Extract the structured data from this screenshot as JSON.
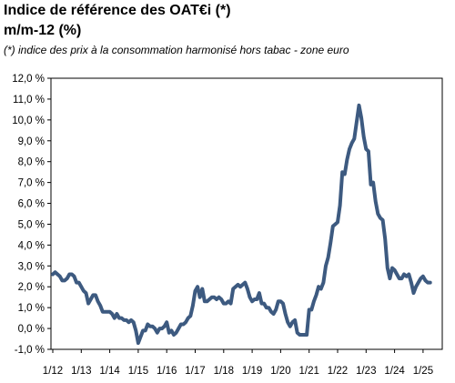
{
  "chart_data": {
    "type": "line",
    "title": "Indice de référence des OAT€i (*)",
    "title_line2": "m/m-12 (%)",
    "subtitle": "(*) indice des prix à la consommation harmonisé hors tabac - zone euro",
    "xlabel": "",
    "ylabel": "",
    "ylim": [
      -1.0,
      12.0
    ],
    "grid": false,
    "line_color": "#3d5a80",
    "y_ticks": [
      "12,0 %",
      "11,0 %",
      "10,0 %",
      "9,0 %",
      "8,0 %",
      "7,0 %",
      "6,0 %",
      "5,0 %",
      "4,0 %",
      "3,0 %",
      "2,0 %",
      "1,0 %",
      "0,0 %",
      "-1,0 %"
    ],
    "x_ticks": [
      "1/12",
      "1/13",
      "1/14",
      "1/15",
      "1/16",
      "1/17",
      "1/18",
      "1/19",
      "1/20",
      "1/21",
      "1/22",
      "1/23",
      "1/24",
      "1/25"
    ],
    "series": [
      {
        "x": [
          "2012-01",
          "2012-02",
          "2012-03",
          "2012-04",
          "2012-05",
          "2012-06",
          "2012-07",
          "2012-08",
          "2012-09",
          "2012-10",
          "2012-11",
          "2012-12",
          "2013-01",
          "2013-02",
          "2013-03",
          "2013-04",
          "2013-05",
          "2013-06",
          "2013-07",
          "2013-08",
          "2013-09",
          "2013-10",
          "2013-11",
          "2013-12",
          "2014-01",
          "2014-02",
          "2014-03",
          "2014-04",
          "2014-05",
          "2014-06",
          "2014-07",
          "2014-08",
          "2014-09",
          "2014-10",
          "2014-11",
          "2014-12",
          "2015-01",
          "2015-02",
          "2015-03",
          "2015-04",
          "2015-05",
          "2015-06",
          "2015-07",
          "2015-08",
          "2015-09",
          "2015-10",
          "2015-11",
          "2015-12",
          "2016-01",
          "2016-02",
          "2016-03",
          "2016-04",
          "2016-05",
          "2016-06",
          "2016-07",
          "2016-08",
          "2016-09",
          "2016-10",
          "2016-11",
          "2016-12",
          "2017-01",
          "2017-02",
          "2017-03",
          "2017-04",
          "2017-05",
          "2017-06",
          "2017-07",
          "2017-08",
          "2017-09",
          "2017-10",
          "2017-11",
          "2017-12",
          "2018-01",
          "2018-02",
          "2018-03",
          "2018-04",
          "2018-05",
          "2018-06",
          "2018-07",
          "2018-08",
          "2018-09",
          "2018-10",
          "2018-11",
          "2018-12",
          "2019-01",
          "2019-02",
          "2019-03",
          "2019-04",
          "2019-05",
          "2019-06",
          "2019-07",
          "2019-08",
          "2019-09",
          "2019-10",
          "2019-11",
          "2019-12",
          "2020-01",
          "2020-02",
          "2020-03",
          "2020-04",
          "2020-05",
          "2020-06",
          "2020-07",
          "2020-08",
          "2020-09",
          "2020-10",
          "2020-11",
          "2020-12",
          "2021-01",
          "2021-02",
          "2021-03",
          "2021-04",
          "2021-05",
          "2021-06",
          "2021-07",
          "2021-08",
          "2021-09",
          "2021-10",
          "2021-11",
          "2021-12",
          "2022-01",
          "2022-02",
          "2022-03",
          "2022-04",
          "2022-05",
          "2022-06",
          "2022-07",
          "2022-08",
          "2022-09",
          "2022-10",
          "2022-11",
          "2022-12",
          "2023-01",
          "2023-02",
          "2023-03",
          "2023-04",
          "2023-05",
          "2023-06",
          "2023-07",
          "2023-08",
          "2023-09",
          "2023-10",
          "2023-11",
          "2023-12",
          "2024-01",
          "2024-02",
          "2024-03",
          "2024-04",
          "2024-05",
          "2024-06",
          "2024-07",
          "2024-08",
          "2024-09",
          "2024-10",
          "2024-11",
          "2024-12",
          "2025-01",
          "2025-02",
          "2025-03",
          "2025-04"
        ],
        "values": [
          2.6,
          2.7,
          2.6,
          2.5,
          2.3,
          2.3,
          2.4,
          2.6,
          2.6,
          2.5,
          2.2,
          2.2,
          2.0,
          1.8,
          1.7,
          1.2,
          1.4,
          1.6,
          1.6,
          1.3,
          1.1,
          0.8,
          0.8,
          0.8,
          0.8,
          0.7,
          0.5,
          0.7,
          0.5,
          0.5,
          0.4,
          0.4,
          0.3,
          0.4,
          0.3,
          -0.1,
          -0.7,
          -0.4,
          -0.1,
          -0.1,
          0.2,
          0.1,
          0.1,
          0.0,
          -0.2,
          0.0,
          0.0,
          0.1,
          0.3,
          -0.2,
          -0.1,
          -0.3,
          -0.2,
          0.0,
          0.2,
          0.2,
          0.3,
          0.5,
          0.6,
          1.1,
          1.8,
          2.0,
          1.5,
          1.9,
          1.3,
          1.3,
          1.4,
          1.5,
          1.5,
          1.4,
          1.5,
          1.4,
          1.2,
          1.2,
          1.3,
          1.2,
          1.9,
          2.0,
          2.1,
          2.0,
          2.1,
          2.2,
          1.9,
          1.5,
          1.3,
          1.4,
          1.4,
          1.7,
          1.2,
          1.2,
          1.0,
          1.0,
          0.8,
          0.7,
          0.9,
          1.3,
          1.3,
          1.2,
          0.7,
          0.3,
          0.1,
          0.3,
          0.4,
          -0.2,
          -0.3,
          -0.3,
          -0.3,
          -0.3,
          0.9,
          0.9,
          1.3,
          1.6,
          2.0,
          1.9,
          2.2,
          3.0,
          3.4,
          4.1,
          4.9,
          5.0,
          5.1,
          5.9,
          7.5,
          7.4,
          8.1,
          8.6,
          8.9,
          9.1,
          9.9,
          10.7,
          10.1,
          9.2,
          8.6,
          8.5,
          6.9,
          7.0,
          6.1,
          5.5,
          5.3,
          5.2,
          4.3,
          2.9,
          2.4,
          2.9,
          2.8,
          2.6,
          2.4,
          2.4,
          2.6,
          2.5,
          2.6,
          2.2,
          1.7,
          2.0,
          2.2,
          2.4,
          2.5,
          2.3,
          2.2,
          2.2
        ]
      }
    ]
  }
}
